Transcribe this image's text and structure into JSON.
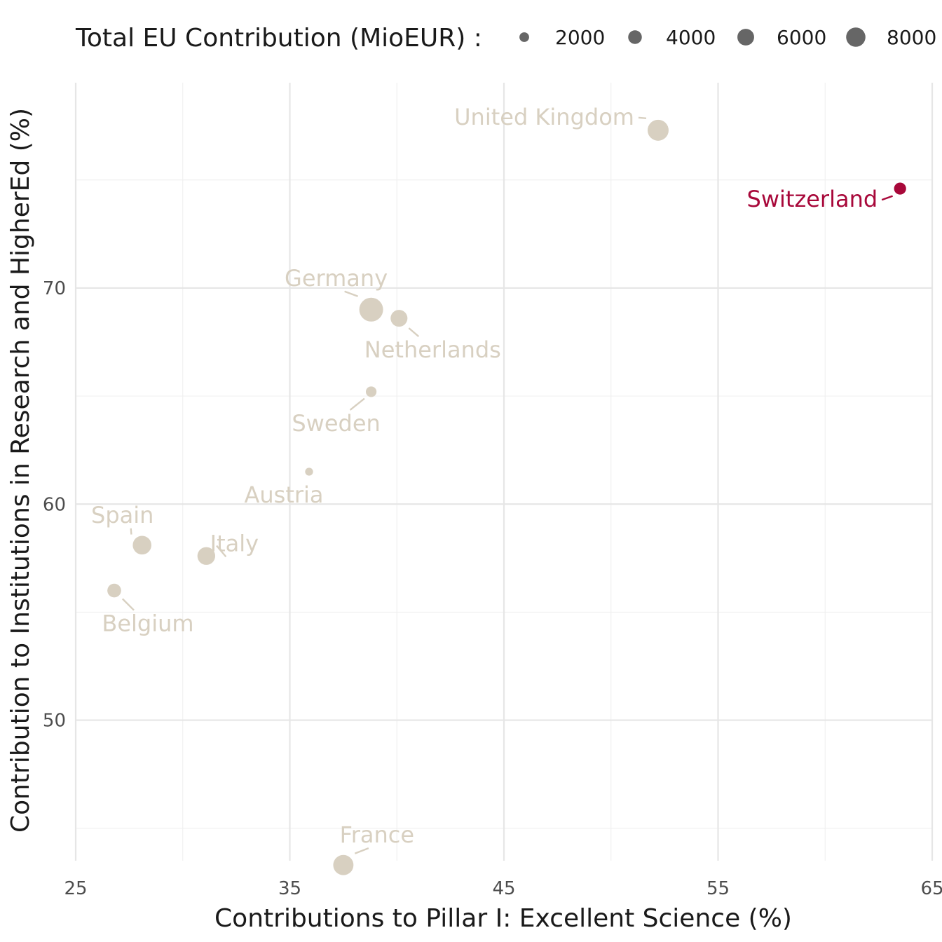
{
  "chart_data": {
    "type": "scatter",
    "xlabel": "Contributions to Pillar I: Excellent Science (%)",
    "ylabel": "Contribution to Institutions in Research and HigherEd (%)",
    "xlim": [
      25,
      65
    ],
    "ylim": [
      43.5,
      79.5
    ],
    "x_ticks": [
      25,
      35,
      45,
      55,
      65
    ],
    "y_ticks": [
      50,
      60,
      70
    ],
    "grid": true,
    "legend": {
      "title": "Total EU Contribution (MioEUR) :",
      "placement": "top",
      "sizes": [
        2000,
        4000,
        6000,
        8000
      ],
      "labels": [
        "2000",
        "4000",
        "6000",
        "8000"
      ],
      "color": "#666666"
    },
    "colors": {
      "default": "#d8d0c1",
      "highlight": "#a8083a"
    },
    "points": [
      {
        "label": "United Kingdom",
        "x": 52.2,
        "y": 77.3,
        "size": 7000,
        "highlight": false
      },
      {
        "label": "Switzerland",
        "x": 63.5,
        "y": 74.6,
        "size": 2300,
        "highlight": true
      },
      {
        "label": "Germany",
        "x": 38.8,
        "y": 69.0,
        "size": 9000,
        "highlight": false
      },
      {
        "label": "Netherlands",
        "x": 40.1,
        "y": 68.6,
        "size": 4500,
        "highlight": false
      },
      {
        "label": "Sweden",
        "x": 38.8,
        "y": 65.2,
        "size": 1800,
        "highlight": false
      },
      {
        "label": "Austria",
        "x": 35.9,
        "y": 61.5,
        "size": 1000,
        "highlight": false
      },
      {
        "label": "Spain",
        "x": 28.1,
        "y": 58.1,
        "size": 5500,
        "highlight": false
      },
      {
        "label": "Italy",
        "x": 31.1,
        "y": 57.6,
        "size": 5000,
        "highlight": false
      },
      {
        "label": "Belgium",
        "x": 26.8,
        "y": 56.0,
        "size": 3000,
        "highlight": false
      },
      {
        "label": "France",
        "x": 37.5,
        "y": 43.3,
        "size": 6500,
        "highlight": false
      }
    ]
  }
}
